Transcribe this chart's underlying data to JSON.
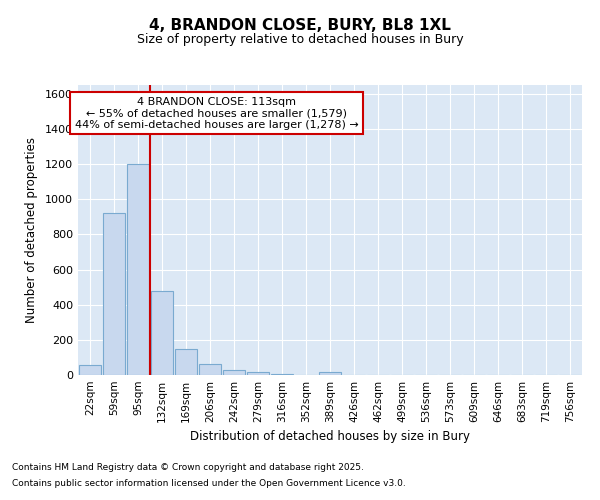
{
  "title1": "4, BRANDON CLOSE, BURY, BL8 1XL",
  "title2": "Size of property relative to detached houses in Bury",
  "xlabel": "Distribution of detached houses by size in Bury",
  "ylabel": "Number of detached properties",
  "categories": [
    "22sqm",
    "59sqm",
    "95sqm",
    "132sqm",
    "169sqm",
    "206sqm",
    "242sqm",
    "279sqm",
    "316sqm",
    "352sqm",
    "389sqm",
    "426sqm",
    "462sqm",
    "499sqm",
    "536sqm",
    "573sqm",
    "609sqm",
    "646sqm",
    "683sqm",
    "719sqm",
    "756sqm"
  ],
  "values": [
    55,
    920,
    1200,
    480,
    150,
    60,
    30,
    15,
    5,
    0,
    15,
    0,
    0,
    0,
    0,
    0,
    0,
    0,
    0,
    0,
    0
  ],
  "bar_color": "#c8d8ee",
  "bar_edge_color": "#7aaad0",
  "vline_color": "#cc0000",
  "vline_pos": 2.5,
  "annotation_line1": "4 BRANDON CLOSE: 113sqm",
  "annotation_line2": "← 55% of detached houses are smaller (1,579)",
  "annotation_line3": "44% of semi-detached houses are larger (1,278) →",
  "annotation_box_color": "#ffffff",
  "annotation_box_edge": "#cc0000",
  "ylim": [
    0,
    1650
  ],
  "yticks": [
    0,
    200,
    400,
    600,
    800,
    1000,
    1200,
    1400,
    1600
  ],
  "fig_bg_color": "#ffffff",
  "plot_bg_color": "#dce8f5",
  "grid_color": "#ffffff",
  "footer1": "Contains HM Land Registry data © Crown copyright and database right 2025.",
  "footer2": "Contains public sector information licensed under the Open Government Licence v3.0."
}
